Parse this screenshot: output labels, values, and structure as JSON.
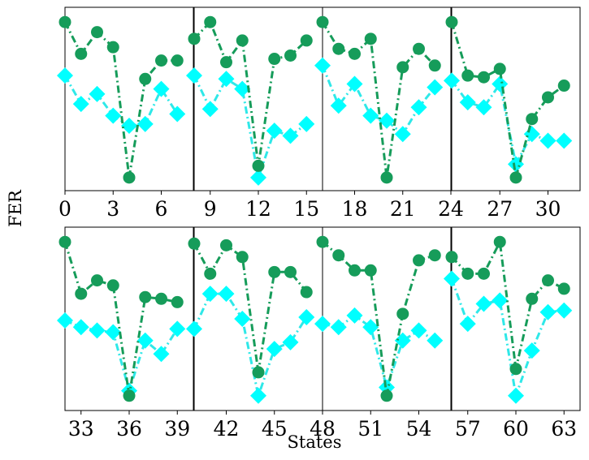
{
  "figure": {
    "ylabel": "FER",
    "xlabel": "States"
  },
  "colors": {
    "series_a": "#169c5a",
    "series_b": "#00ffff",
    "series_b_line": "#2fe8e8"
  },
  "chart_data": {
    "type": "line",
    "xlabel": "States",
    "ylabel": "FER",
    "grid": false,
    "legend": "none",
    "series_style": [
      {
        "marker": "circle",
        "line": "dash-dot"
      },
      {
        "marker": "diamond",
        "line": "dash-dot"
      }
    ],
    "panels": [
      {
        "x": [
          0,
          1,
          2,
          3,
          4,
          5,
          6,
          7
        ],
        "xlim": [
          0,
          8
        ],
        "ticks": [
          0,
          3,
          6
        ],
        "series": [
          {
            "values": [
              0.96,
              0.77,
              0.9,
              0.81,
              0.03,
              0.62,
              0.73,
              0.73
            ]
          },
          {
            "values": [
              0.64,
              0.47,
              0.53,
              0.4,
              0.34,
              0.35,
              0.56,
              0.41
            ]
          }
        ]
      },
      {
        "x": [
          8,
          9,
          10,
          11,
          12,
          13,
          14,
          15
        ],
        "xlim": [
          8,
          16
        ],
        "ticks": [
          9,
          12,
          15
        ],
        "series": [
          {
            "values": [
              0.86,
              0.96,
              0.72,
              0.85,
              0.1,
              0.74,
              0.76,
              0.85
            ]
          },
          {
            "values": [
              0.64,
              0.44,
              0.62,
              0.56,
              0.03,
              0.31,
              0.28,
              0.35
            ]
          }
        ]
      },
      {
        "x": [
          16,
          17,
          18,
          19,
          20,
          21,
          22,
          23
        ],
        "xlim": [
          16,
          24
        ],
        "ticks": [
          18,
          21,
          24
        ],
        "series": [
          {
            "values": [
              0.96,
              0.8,
              0.77,
              0.86,
              0.03,
              0.69,
              0.8,
              0.7
            ]
          },
          {
            "values": [
              0.7,
              0.46,
              0.59,
              0.4,
              0.37,
              0.29,
              0.45,
              0.57
            ]
          }
        ]
      },
      {
        "x": [
          24,
          25,
          26,
          27,
          28,
          29,
          30,
          31
        ],
        "xlim": [
          24,
          32
        ],
        "ticks": [
          27,
          30
        ],
        "series": [
          {
            "values": [
              0.96,
              0.64,
              0.63,
              0.68,
              0.03,
              0.38,
              0.51,
              0.58
            ]
          },
          {
            "values": [
              0.61,
              0.48,
              0.45,
              0.59,
              0.11,
              0.29,
              0.25,
              0.25
            ]
          }
        ]
      },
      {
        "x": [
          32,
          33,
          34,
          35,
          36,
          37,
          38,
          39
        ],
        "xlim": [
          32,
          40
        ],
        "ticks": [
          33,
          36,
          39
        ],
        "series": [
          {
            "values": [
              0.96,
              0.65,
              0.73,
              0.7,
              0.04,
              0.63,
              0.62,
              0.6
            ]
          },
          {
            "values": [
              0.49,
              0.45,
              0.43,
              0.42,
              0.07,
              0.37,
              0.29,
              0.44
            ]
          }
        ]
      },
      {
        "x": [
          40,
          41,
          42,
          43,
          44,
          45,
          46,
          47
        ],
        "xlim": [
          40,
          48
        ],
        "ticks": [
          42,
          45,
          48
        ],
        "series": [
          {
            "values": [
              0.95,
              0.77,
              0.94,
              0.87,
              0.18,
              0.78,
              0.78,
              0.66
            ]
          },
          {
            "values": [
              0.44,
              0.65,
              0.65,
              0.5,
              0.04,
              0.32,
              0.36,
              0.51
            ]
          }
        ]
      },
      {
        "x": [
          48,
          49,
          50,
          51,
          52,
          53,
          54,
          55
        ],
        "xlim": [
          48,
          56
        ],
        "ticks": [
          51,
          54
        ],
        "series": [
          {
            "values": [
              0.96,
              0.88,
              0.79,
              0.79,
              0.04,
              0.53,
              0.85,
              0.88
            ]
          },
          {
            "values": [
              0.47,
              0.45,
              0.52,
              0.45,
              0.09,
              0.37,
              0.43,
              0.37
            ]
          }
        ]
      },
      {
        "x": [
          56,
          57,
          58,
          59,
          60,
          61,
          62,
          63
        ],
        "xlim": [
          56,
          64
        ],
        "ticks": [
          57,
          60,
          63
        ],
        "series": [
          {
            "values": [
              0.87,
              0.77,
              0.77,
              0.96,
              0.2,
              0.62,
              0.73,
              0.68
            ]
          },
          {
            "values": [
              0.74,
              0.47,
              0.59,
              0.61,
              0.04,
              0.31,
              0.54,
              0.55
            ]
          }
        ]
      }
    ]
  }
}
